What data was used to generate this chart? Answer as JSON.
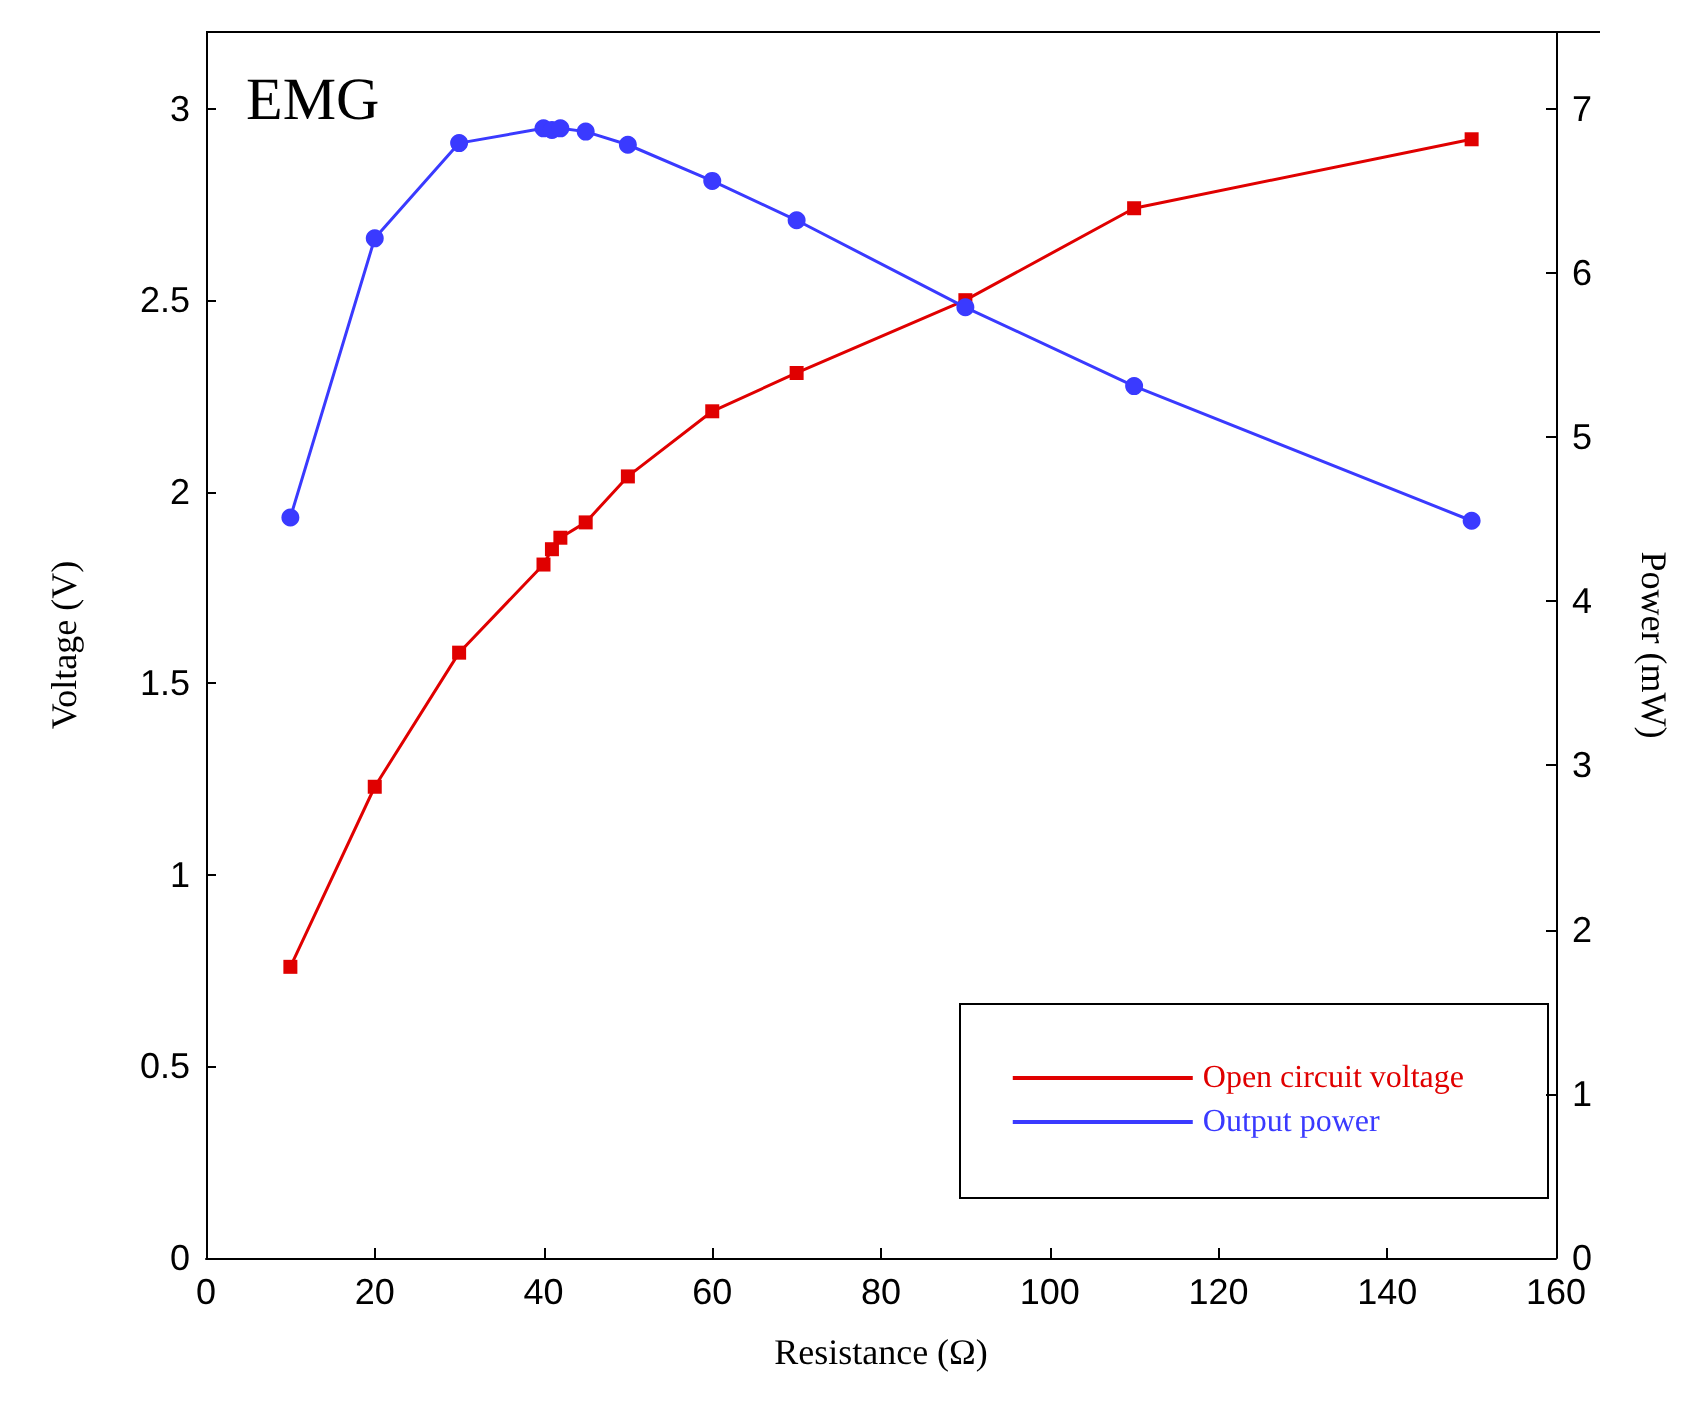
{
  "chart_data": {
    "type": "line",
    "title": "EMG",
    "xlabel": "Resistance (Ω)",
    "ylabel": "Voltage (V)",
    "y2label": "Power (mW)",
    "xlim": [
      0,
      160
    ],
    "xticks": [
      0,
      20,
      40,
      60,
      80,
      100,
      120,
      140,
      160
    ],
    "ylim": [
      0,
      3.2
    ],
    "yticks": [
      0,
      0.5,
      1,
      1.5,
      2,
      2.5,
      3
    ],
    "y2lim": [
      0,
      7.4667
    ],
    "y2ticks": [
      0,
      1,
      2,
      3,
      4,
      5,
      6,
      7
    ],
    "x": [
      10,
      20,
      30,
      40,
      41,
      42,
      45,
      50,
      60,
      70,
      90,
      110,
      150
    ],
    "series": [
      {
        "name": "Open circuit voltage",
        "color": "#e00000",
        "marker": "square",
        "values": [
          0.76,
          1.23,
          1.58,
          1.81,
          1.85,
          1.88,
          1.92,
          2.04,
          2.21,
          2.31,
          2.5,
          2.74,
          2.92
        ]
      },
      {
        "name": "Output power",
        "color": "#3a3aff",
        "marker": "circle",
        "axis": "y2",
        "values": [
          4.51,
          6.21,
          6.79,
          6.88,
          6.87,
          6.88,
          6.86,
          6.78,
          6.56,
          6.32,
          5.79,
          5.31,
          4.49
        ]
      }
    ],
    "grid": false,
    "legend": "bottom right",
    "line_style": "solid"
  }
}
